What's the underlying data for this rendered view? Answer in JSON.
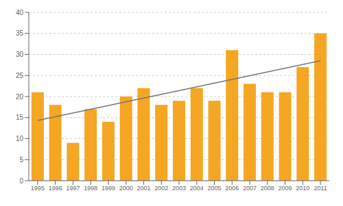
{
  "chart_data": {
    "type": "bar",
    "categories": [
      "1995",
      "1996",
      "1997",
      "1998",
      "1999",
      "2000",
      "2001",
      "2002",
      "2003",
      "2004",
      "2005",
      "2006",
      "2007",
      "2008",
      "2009",
      "2010",
      "2011"
    ],
    "series": [
      {
        "type": "bar",
        "color": "#F5A623",
        "values": [
          21,
          18,
          9,
          17,
          14,
          20,
          22,
          18,
          19,
          22,
          19,
          31,
          23,
          21,
          21,
          27,
          35
        ]
      },
      {
        "type": "line",
        "color": "#777777",
        "values": [
          14.3,
          null,
          null,
          null,
          null,
          null,
          null,
          null,
          null,
          null,
          null,
          null,
          null,
          null,
          null,
          null,
          28.5
        ]
      }
    ],
    "ylim": [
      0,
      40
    ],
    "yticks": [
      0,
      5,
      10,
      15,
      20,
      25,
      30,
      35,
      40
    ],
    "grid": true
  }
}
